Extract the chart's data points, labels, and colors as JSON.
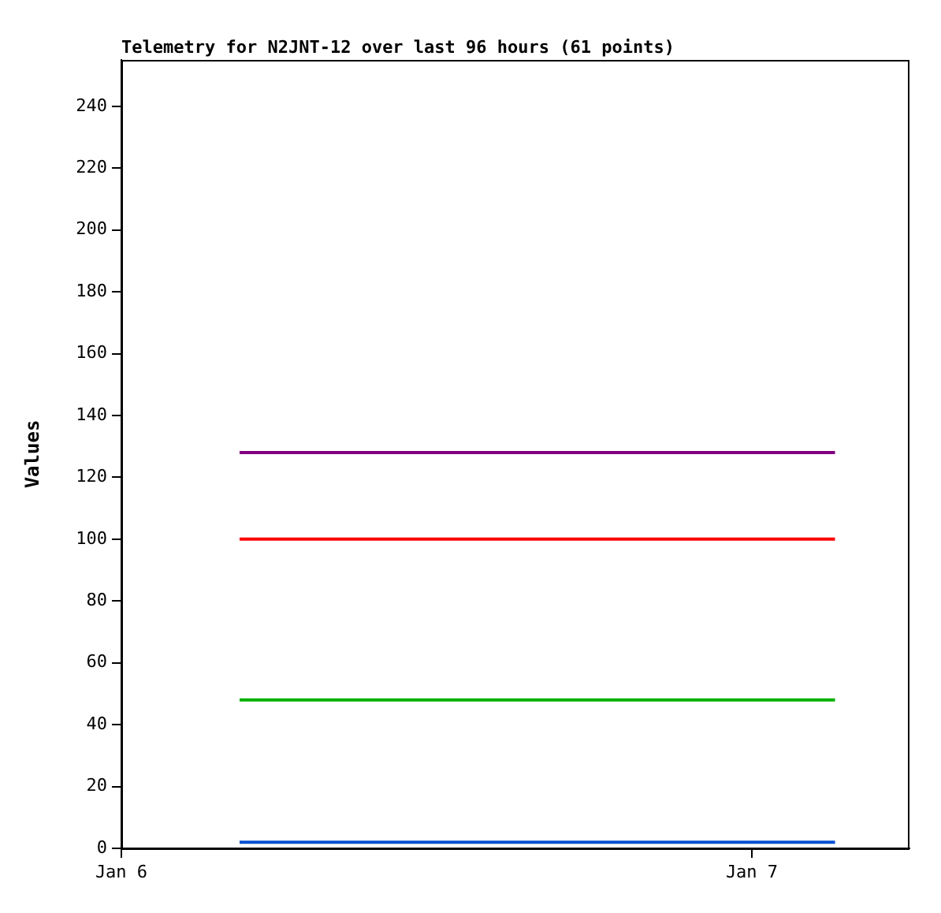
{
  "chart_data": {
    "type": "line",
    "title": "Telemetry for N2JNT-12 over last 96 hours (61 points)",
    "ylabel": "Values",
    "x": [
      "--01-06T04:30",
      "--01-07T03:10"
    ],
    "series": [
      {
        "color": "#800080",
        "values": [
          128,
          128
        ]
      },
      {
        "color": "#ff0000",
        "values": [
          100,
          100
        ]
      },
      {
        "color": "#00b000",
        "values": [
          48,
          48
        ]
      },
      {
        "color": "#0050d0",
        "values": [
          2,
          2
        ]
      }
    ],
    "xlim": [
      "--01-06",
      "--01-07T06:00"
    ],
    "xticks": [
      {
        "value": "--01-06",
        "label": "Jan 6"
      },
      {
        "value": "--01-07",
        "label": "Jan 7"
      }
    ],
    "ylim": [
      0,
      255
    ],
    "yticks": [
      0,
      20,
      40,
      60,
      80,
      100,
      120,
      140,
      160,
      180,
      200,
      220,
      240
    ],
    "grid": false,
    "legend": false,
    "marker": "none",
    "line_style": "solid"
  }
}
